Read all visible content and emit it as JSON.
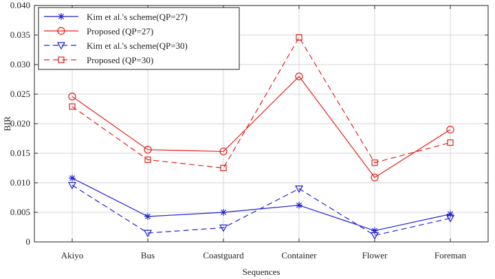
{
  "chart_data": {
    "type": "line",
    "title": "",
    "xlabel": "Sequences",
    "ylabel": "BIR",
    "categories": [
      "Akiyo",
      "Bus",
      "Coastguard",
      "Container",
      "Flower",
      "Foreman"
    ],
    "ylim": [
      0,
      0.04
    ],
    "yticks": [
      "0",
      "0.005",
      "0.010",
      "0.015",
      "0.020",
      "0.025",
      "0.030",
      "0.035",
      "0.040"
    ],
    "grid": true,
    "legend_position": "top-left",
    "series": [
      {
        "name": "Kim et al.'s scheme(QP=27)",
        "color": "#1f1fd6",
        "dash": "solid",
        "marker": "asterisk",
        "values": [
          0.0108,
          0.0043,
          0.005,
          0.0062,
          0.0019,
          0.0047
        ]
      },
      {
        "name": "Proposed (QP=27)",
        "color": "#e0201e",
        "dash": "solid",
        "marker": "circle",
        "values": [
          0.0246,
          0.0156,
          0.0153,
          0.028,
          0.0109,
          0.019
        ]
      },
      {
        "name": "Kim et al.'s scheme(QP=30)",
        "color": "#1f1fd6",
        "dash": "dashed",
        "marker": "triangle-down",
        "values": [
          0.0096,
          0.0015,
          0.0024,
          0.009,
          0.0011,
          0.004
        ]
      },
      {
        "name": "Proposed (QP=30)",
        "color": "#e0201e",
        "dash": "dashed",
        "marker": "square",
        "values": [
          0.0229,
          0.0139,
          0.0125,
          0.0346,
          0.0134,
          0.0168
        ]
      }
    ]
  }
}
